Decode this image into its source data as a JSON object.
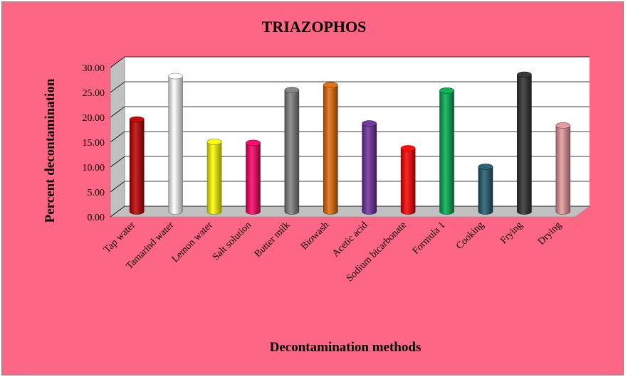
{
  "chart_data": {
    "type": "bar",
    "title": "TRIAZOPHOS",
    "xlabel": "Decontamination methods",
    "ylabel": "Percent decontamination",
    "ylim": [
      0,
      30
    ],
    "yticks": [
      "0.00",
      "5.00",
      "10.00",
      "15.00",
      "20.00",
      "25.00",
      "30.00"
    ],
    "grid": true,
    "background_color": "#fd6785",
    "categories": [
      "Tap water",
      "Tamarind water",
      "Lemon water",
      "Salt solution",
      "Butter milk",
      "Biowash",
      "Acetic acid",
      "Sodium bicarbonate",
      "Formula 1",
      "Cooking",
      "Frying",
      "Drying"
    ],
    "values": [
      18.5,
      27.2,
      14.0,
      13.8,
      24.4,
      25.4,
      17.7,
      12.7,
      24.3,
      9.0,
      27.5,
      17.3
    ],
    "colors": [
      "#c00000",
      "#ffffff",
      "#ffff00",
      "#ff0066",
      "#808080",
      "#e46c0a",
      "#7030a0",
      "#ff0000",
      "#00b050",
      "#1f5c6e",
      "#303030",
      "#e6999c"
    ]
  }
}
